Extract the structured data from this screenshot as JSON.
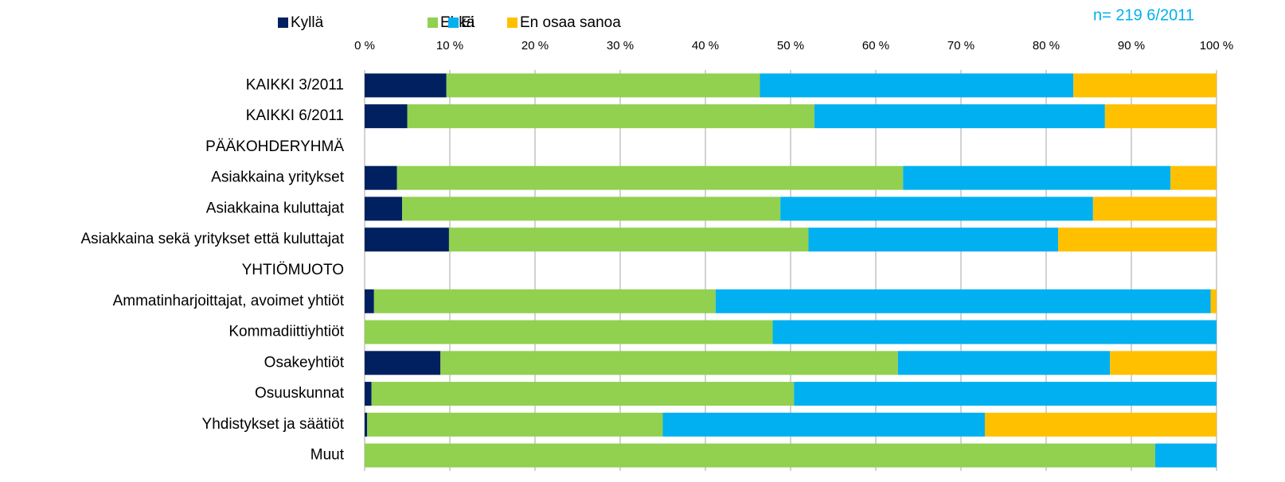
{
  "chart_data": {
    "type": "stacked_barh",
    "annotation": "n= 219  6/2011",
    "categories": [
      "KAIKKI 3/2011",
      "KAIKKI 6/2011",
      "PÄÄKOHDERYHMÄ",
      "Asiakkaina yritykset",
      "Asiakkaina kuluttajat",
      "Asiakkaina sekä yritykset että kuluttajat",
      "YHTIÖMUOTO",
      "Ammatinharjoittajat, avoimet yhtiöt",
      "Kommadiittiyhtiöt",
      "Osakeyhtiöt",
      "Osuuskunnat",
      "Yhdistykset ja säätiöt",
      "Muut"
    ],
    "series": [
      {
        "name": "Kyllä",
        "color": "#002060",
        "values": [
          9.6,
          5.0,
          null,
          3.8,
          4.4,
          9.9,
          null,
          1.1,
          0,
          8.9,
          0.8,
          0.3,
          0
        ]
      },
      {
        "name": "Ehkä",
        "color": "#92d050",
        "values": [
          36.8,
          47.8,
          null,
          59.4,
          44.4,
          42.2,
          null,
          40.1,
          47.9,
          53.7,
          49.6,
          34.7,
          92.8
        ]
      },
      {
        "name": "Ei",
        "color": "#00b0f0",
        "values": [
          36.8,
          34.1,
          null,
          31.4,
          36.7,
          29.3,
          null,
          58.1,
          52.1,
          24.9,
          49.6,
          37.8,
          7.2
        ]
      },
      {
        "name": "En osaa sanoa",
        "color": "#ffc000",
        "values": [
          16.8,
          13.1,
          null,
          5.4,
          14.5,
          18.6,
          null,
          0.7,
          0,
          12.5,
          0,
          27.2,
          0
        ]
      }
    ],
    "xlim": [
      0,
      100
    ],
    "xticks": [
      {
        "value": 0,
        "label": "0 %"
      },
      {
        "value": 10,
        "label": "10 %"
      },
      {
        "value": 20,
        "label": "20 %"
      },
      {
        "value": 30,
        "label": "30 %"
      },
      {
        "value": 40,
        "label": "40 %"
      },
      {
        "value": 50,
        "label": "50 %"
      },
      {
        "value": 60,
        "label": "60 %"
      },
      {
        "value": 70,
        "label": "70 %"
      },
      {
        "value": 80,
        "label": "80 %"
      },
      {
        "value": 90,
        "label": "90 %"
      },
      {
        "value": 100,
        "label": "100 %"
      }
    ],
    "grid": true,
    "legend": "top"
  }
}
